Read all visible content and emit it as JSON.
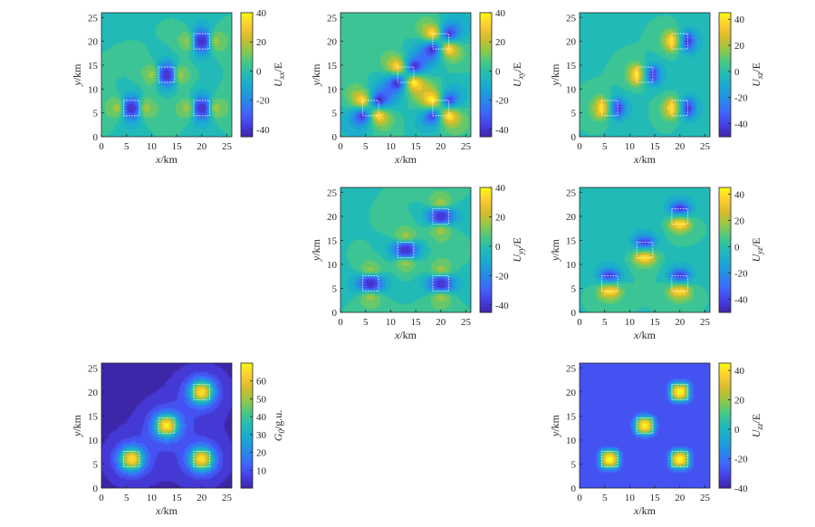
{
  "chart_data": [
    {
      "id": "uxx",
      "type": "heatmap",
      "title": "",
      "xlabel": "x/km",
      "ylabel": "y/km",
      "xlim": [
        0,
        26
      ],
      "ylim": [
        0,
        26
      ],
      "xticks": [
        "0",
        "5",
        "10",
        "15",
        "20",
        "25"
      ],
      "yticks": [
        "0",
        "5",
        "10",
        "15",
        "20",
        "25"
      ],
      "colorbar": {
        "label": "U_xx/E",
        "range": [
          -45,
          40
        ],
        "ticks": [
          "40",
          "20",
          "0",
          "-20",
          "-40"
        ]
      },
      "background_value": 0,
      "sources": [
        {
          "x": 6,
          "y": 6
        },
        {
          "x": 13,
          "y": 13
        },
        {
          "x": 20,
          "y": 20
        },
        {
          "x": 20,
          "y": 6
        }
      ]
    },
    {
      "id": "uxy",
      "type": "heatmap",
      "title": "",
      "xlabel": "x/km",
      "ylabel": "y/km",
      "xlim": [
        0,
        26
      ],
      "ylim": [
        0,
        26
      ],
      "xticks": [
        "0",
        "5",
        "10",
        "15",
        "20",
        "25"
      ],
      "yticks": [
        "0",
        "5",
        "10",
        "15",
        "20",
        "25"
      ],
      "colorbar": {
        "label": "U_xy/E",
        "range": [
          -45,
          40
        ],
        "ticks": [
          "40",
          "20",
          "0",
          "-20",
          "-40"
        ]
      },
      "background_value": 0,
      "sources": [
        {
          "x": 6,
          "y": 6
        },
        {
          "x": 13,
          "y": 13
        },
        {
          "x": 20,
          "y": 20
        },
        {
          "x": 20,
          "y": 6
        }
      ]
    },
    {
      "id": "uxz",
      "type": "heatmap",
      "title": "",
      "xlabel": "x/km",
      "ylabel": "y/km",
      "xlim": [
        0,
        26
      ],
      "ylim": [
        0,
        26
      ],
      "xticks": [
        "0",
        "5",
        "10",
        "15",
        "20",
        "25"
      ],
      "yticks": [
        "0",
        "5",
        "10",
        "15",
        "20",
        "25"
      ],
      "colorbar": {
        "label": "U_xz/E",
        "range": [
          -50,
          45
        ],
        "ticks": [
          "40",
          "20",
          "0",
          "-20",
          "-40"
        ]
      },
      "background_value": 0,
      "sources": [
        {
          "x": 6,
          "y": 6
        },
        {
          "x": 13,
          "y": 13
        },
        {
          "x": 20,
          "y": 20
        },
        {
          "x": 20,
          "y": 6
        }
      ]
    },
    {
      "id": "uyy",
      "type": "heatmap",
      "title": "",
      "xlabel": "x/km",
      "ylabel": "y/km",
      "xlim": [
        0,
        26
      ],
      "ylim": [
        0,
        26
      ],
      "xticks": [
        "0",
        "5",
        "10",
        "15",
        "20",
        "25"
      ],
      "yticks": [
        "0",
        "5",
        "10",
        "15",
        "20",
        "25"
      ],
      "colorbar": {
        "label": "U_yy/E",
        "range": [
          -45,
          40
        ],
        "ticks": [
          "40",
          "20",
          "0",
          "-20",
          "-40"
        ]
      },
      "background_value": 0,
      "sources": [
        {
          "x": 6,
          "y": 6
        },
        {
          "x": 13,
          "y": 13
        },
        {
          "x": 20,
          "y": 20
        },
        {
          "x": 20,
          "y": 6
        }
      ]
    },
    {
      "id": "uyz",
      "type": "heatmap",
      "title": "",
      "xlabel": "x/km",
      "ylabel": "y/km",
      "xlim": [
        0,
        26
      ],
      "ylim": [
        0,
        26
      ],
      "xticks": [
        "0",
        "5",
        "10",
        "15",
        "20",
        "25"
      ],
      "yticks": [
        "0",
        "5",
        "10",
        "15",
        "20",
        "25"
      ],
      "colorbar": {
        "label": "U_yz/E",
        "range": [
          -50,
          45
        ],
        "ticks": [
          "40",
          "20",
          "0",
          "-20",
          "-40"
        ]
      },
      "background_value": 0,
      "sources": [
        {
          "x": 6,
          "y": 6
        },
        {
          "x": 13,
          "y": 13
        },
        {
          "x": 20,
          "y": 20
        },
        {
          "x": 20,
          "y": 6
        }
      ]
    },
    {
      "id": "g0",
      "type": "heatmap",
      "title": "",
      "xlabel": "x/km",
      "ylabel": "y/km",
      "xlim": [
        0,
        26
      ],
      "ylim": [
        0,
        26
      ],
      "xticks": [
        "0",
        "5",
        "10",
        "15",
        "20",
        "25"
      ],
      "yticks": [
        "0",
        "5",
        "10",
        "15",
        "20",
        "25"
      ],
      "colorbar": {
        "label": "G_0/g.u.",
        "range": [
          0,
          70
        ],
        "ticks": [
          "60",
          "50",
          "40",
          "30",
          "20",
          "10"
        ]
      },
      "background_value": 0,
      "sources": [
        {
          "x": 6,
          "y": 6
        },
        {
          "x": 13,
          "y": 13
        },
        {
          "x": 20,
          "y": 20
        },
        {
          "x": 20,
          "y": 6
        }
      ]
    },
    {
      "id": "uzz",
      "type": "heatmap",
      "title": "",
      "xlabel": "x/km",
      "ylabel": "y/km",
      "xlim": [
        0,
        26
      ],
      "ylim": [
        0,
        26
      ],
      "xticks": [
        "0",
        "5",
        "10",
        "15",
        "20",
        "25"
      ],
      "yticks": [
        "0",
        "5",
        "10",
        "15",
        "20",
        "25"
      ],
      "colorbar": {
        "label": "U_zz/E",
        "range": [
          -40,
          45
        ],
        "ticks": [
          "40",
          "20",
          "0",
          "-20",
          "-40"
        ]
      },
      "background_value": -30,
      "sources": [
        {
          "x": 6,
          "y": 6
        },
        {
          "x": 13,
          "y": 13
        },
        {
          "x": 20,
          "y": 20
        },
        {
          "x": 20,
          "y": 6
        }
      ]
    }
  ]
}
